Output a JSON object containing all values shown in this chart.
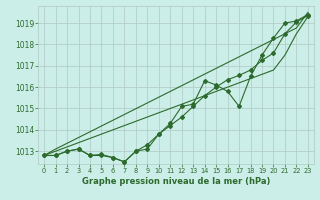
{
  "x": [
    0,
    1,
    2,
    3,
    4,
    5,
    6,
    7,
    8,
    9,
    10,
    11,
    12,
    13,
    14,
    15,
    16,
    17,
    18,
    19,
    20,
    21,
    22,
    23
  ],
  "measured_line": [
    1012.8,
    1012.8,
    1013.0,
    1013.1,
    1012.8,
    1012.8,
    1012.7,
    1012.5,
    1013.0,
    1013.1,
    1013.8,
    1014.3,
    1015.1,
    1015.2,
    1016.3,
    1016.1,
    1015.8,
    1015.1,
    1016.5,
    1017.5,
    1018.3,
    1019.0,
    1019.1,
    1019.4
  ],
  "line2": [
    1012.8,
    1012.8,
    1013.0,
    1013.1,
    1012.8,
    1012.85,
    1012.7,
    1012.5,
    1013.0,
    1013.3,
    1013.8,
    1014.2,
    1014.6,
    1015.1,
    1015.6,
    1016.0,
    1016.35,
    1016.55,
    1016.8,
    1017.25,
    1017.6,
    1018.5,
    1019.05,
    1019.35
  ],
  "straight_upper": [
    1012.8,
    1013.1,
    1013.37,
    1013.64,
    1013.91,
    1014.18,
    1014.45,
    1014.72,
    1014.99,
    1015.26,
    1015.53,
    1015.8,
    1016.07,
    1016.34,
    1016.61,
    1016.88,
    1017.15,
    1017.42,
    1017.69,
    1017.96,
    1018.23,
    1018.5,
    1018.77,
    1019.5
  ],
  "straight_lower": [
    1012.8,
    1013.0,
    1013.2,
    1013.4,
    1013.6,
    1013.8,
    1014.0,
    1014.2,
    1014.4,
    1014.6,
    1014.8,
    1015.0,
    1015.2,
    1015.4,
    1015.6,
    1015.8,
    1016.0,
    1016.2,
    1016.4,
    1016.6,
    1016.8,
    1017.5,
    1018.5,
    1019.3
  ],
  "bg_color": "#cceee8",
  "line_color": "#2d6a2d",
  "grid_color": "#b0c8c4",
  "xlabel": "Graphe pression niveau de la mer (hPa)",
  "ylim": [
    1012.4,
    1019.8
  ],
  "yticks": [
    1013,
    1014,
    1015,
    1016,
    1017,
    1018,
    1019
  ],
  "xticks": [
    0,
    1,
    2,
    3,
    4,
    5,
    6,
    7,
    8,
    9,
    10,
    11,
    12,
    13,
    14,
    15,
    16,
    17,
    18,
    19,
    20,
    21,
    22,
    23
  ]
}
